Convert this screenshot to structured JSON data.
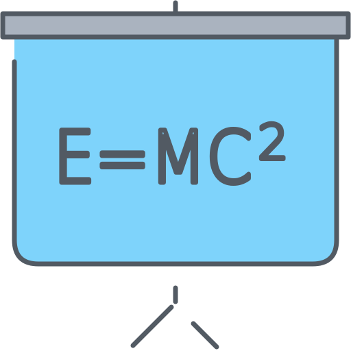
{
  "icon": {
    "name": "projector-screen-formula-icon",
    "formula": {
      "main": "E=MC",
      "exponent": "2"
    }
  },
  "colors": {
    "screen_fill": "#7ed3fb",
    "roller_fill": "#aab3bf",
    "outline": "#525a63",
    "background": "#ffffff"
  }
}
